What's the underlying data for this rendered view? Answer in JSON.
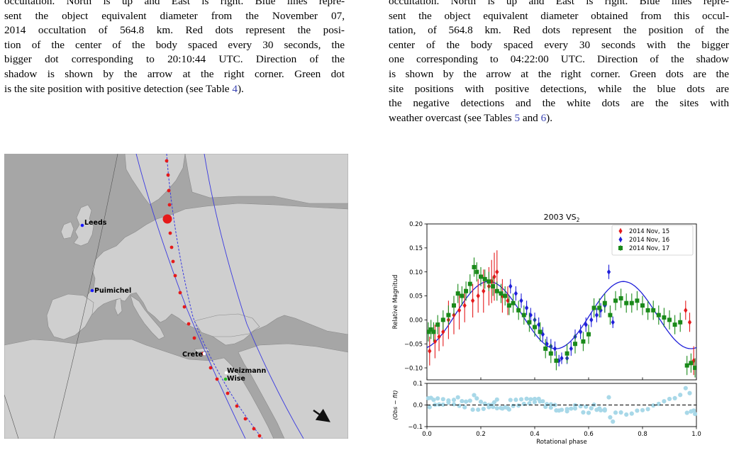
{
  "captions": {
    "left": [
      {
        "t": "occultation. North is up and East is right. Blue lines repre-"
      },
      {
        "t": "sent the object equivalent diameter from the November 07,"
      },
      {
        "t": "2014 occultation of 564.8 km. Red dots represent the posi-"
      },
      {
        "t": "tion of the center of the body spaced every 30 seconds, the"
      },
      {
        "t": "bigger dot corresponding to 20:10:44 UTC. Direction of the"
      },
      {
        "t": "shadow is shown by the arrow at the right corner. Green dot"
      },
      {
        "t": "is the site position with positive detection (see Table ",
        "ref": "4",
        "after": ")."
      }
    ],
    "right": [
      {
        "t": "occultation. North is up and East is right. Blue lines repre-"
      },
      {
        "t": "sent the object equivalent diameter obtained from this occul-"
      },
      {
        "t": "tation, of 564.8 km. Red dots represent the position of the"
      },
      {
        "t": "center of the body spaced every 30 seconds with the bigger"
      },
      {
        "t": "one corresponding to 04:22:00 UTC. Direction of the shadow"
      },
      {
        "t": "is shown by the arrow at the right corner. Green dots are the"
      },
      {
        "t": "site positions with positive detections, while the blue dots are"
      },
      {
        "t": "the negative detections and the white dots are the sites with"
      },
      {
        "t": "weather overcast (see Tables ",
        "ref": "5",
        "mid": " and ",
        "ref2": "6",
        "after": ")."
      }
    ]
  },
  "map": {
    "sites": [
      {
        "name": "Leeds",
        "lon": -1.5,
        "lat": 53.8,
        "color": "#1a1aff"
      },
      {
        "name": "Puimichel",
        "lon": 6.0,
        "lat": 43.98,
        "color": "#1a1aff"
      },
      {
        "name": "Crete",
        "lon": 24.9,
        "lat": 35.3,
        "color": "#ffffff"
      },
      {
        "name": "Weizmann",
        "lon": 34.8,
        "lat": 31.9,
        "color": "#ffffff"
      },
      {
        "name": "Wise",
        "lon": 34.76,
        "lat": 30.6,
        "color": "#22bb22"
      }
    ],
    "colors": {
      "sea": "#a6a6a6",
      "land": "#cfcfcf",
      "chord": "#3a3ae0",
      "center": "#e51a1a"
    }
  },
  "lightcurve": {
    "chart_data": {
      "type": "scatter",
      "title": "2003 VS",
      "title_sub": "2",
      "xlabel": "Rotational phase",
      "ylabel": "Relative Magnitud",
      "residual_ylabel": "(Obs − fit)",
      "xlim": [
        0.0,
        1.0
      ],
      "ylim": [
        -0.125,
        0.2
      ],
      "residual_ylim": [
        -0.1,
        0.1
      ],
      "x_ticks": [
        "0.0",
        "0.2",
        "0.4",
        "0.6",
        "0.8",
        "1.0"
      ],
      "y_ticks": [
        "0.20",
        "0.15",
        "0.10",
        "0.05",
        "0.00",
        "−0.05",
        "−0.10"
      ],
      "residual_ticks": [
        "0.1",
        "0.0",
        "−0.1"
      ],
      "legend_position": "top-right",
      "fit": {
        "mean": 0.01,
        "amp1": 0.07,
        "phase1_deg": -75
      },
      "series": [
        {
          "name": "2014 Nov, 15",
          "color": "#e41a1c",
          "marker": "diamond",
          "x": [
            0.01,
            0.03,
            0.045,
            0.06,
            0.08,
            0.1,
            0.12,
            0.14,
            0.17,
            0.19,
            0.21,
            0.23,
            0.24,
            0.25,
            0.26,
            0.28,
            0.3,
            0.96,
            0.975,
            0.99
          ],
          "y": [
            -0.065,
            -0.045,
            -0.035,
            -0.025,
            0.0,
            0.01,
            0.02,
            0.03,
            0.04,
            0.05,
            0.06,
            0.07,
            0.08,
            0.09,
            0.1,
            0.05,
            0.04,
            0.02,
            -0.005,
            -0.085
          ],
          "err": [
            0.03,
            0.035,
            0.03,
            0.03,
            0.04,
            0.04,
            0.04,
            0.035,
            0.035,
            0.035,
            0.045,
            0.04,
            0.045,
            0.05,
            0.045,
            0.035,
            0.03,
            0.02,
            0.02,
            0.03
          ]
        },
        {
          "name": "2014 Nov, 16",
          "color": "#1f1fd9",
          "marker": "diamond",
          "x": [
            0.31,
            0.33,
            0.35,
            0.37,
            0.385,
            0.4,
            0.415,
            0.43,
            0.445,
            0.46,
            0.475,
            0.49,
            0.5,
            0.52,
            0.535,
            0.55,
            0.57,
            0.59,
            0.61,
            0.63,
            0.645,
            0.66,
            0.675,
            0.69
          ],
          "y": [
            0.07,
            0.055,
            0.04,
            0.025,
            0.01,
            0.0,
            -0.01,
            -0.03,
            -0.05,
            -0.055,
            -0.06,
            -0.085,
            -0.08,
            -0.08,
            -0.06,
            -0.035,
            -0.025,
            -0.01,
            0.0,
            0.01,
            0.02,
            0.03,
            0.1,
            -0.005
          ],
          "err": [
            0.015,
            0.015,
            0.015,
            0.015,
            0.015,
            0.015,
            0.015,
            0.015,
            0.015,
            0.015,
            0.015,
            0.012,
            0.012,
            0.012,
            0.015,
            0.015,
            0.015,
            0.015,
            0.015,
            0.015,
            0.015,
            0.015,
            0.015,
            0.012
          ]
        },
        {
          "name": "2014 Nov, 17",
          "color": "#1a8a1a",
          "marker": "square",
          "x": [
            0.005,
            0.015,
            0.025,
            0.04,
            0.06,
            0.08,
            0.1,
            0.115,
            0.13,
            0.145,
            0.16,
            0.175,
            0.185,
            0.2,
            0.215,
            0.23,
            0.245,
            0.26,
            0.275,
            0.29,
            0.305,
            0.32,
            0.34,
            0.36,
            0.38,
            0.4,
            0.42,
            0.44,
            0.46,
            0.48,
            0.52,
            0.55,
            0.58,
            0.6,
            0.62,
            0.64,
            0.66,
            0.68,
            0.7,
            0.72,
            0.74,
            0.76,
            0.78,
            0.8,
            0.82,
            0.84,
            0.86,
            0.88,
            0.9,
            0.92,
            0.94,
            0.965,
            0.98,
            0.995
          ],
          "y": [
            -0.025,
            -0.02,
            -0.025,
            -0.01,
            0.0,
            0.01,
            0.03,
            0.055,
            0.05,
            0.06,
            0.075,
            0.11,
            0.1,
            0.09,
            0.085,
            0.08,
            0.07,
            0.06,
            0.055,
            0.05,
            0.03,
            0.035,
            0.02,
            0.01,
            -0.005,
            -0.015,
            -0.025,
            -0.06,
            -0.07,
            -0.085,
            -0.07,
            -0.05,
            -0.045,
            -0.03,
            0.025,
            0.025,
            0.035,
            0.01,
            0.04,
            0.045,
            0.035,
            0.035,
            0.04,
            0.03,
            0.02,
            0.02,
            0.01,
            0.005,
            0.0,
            -0.01,
            -0.005,
            -0.095,
            -0.09,
            -0.1
          ],
          "err": [
            0.02,
            0.02,
            0.02,
            0.02,
            0.02,
            0.02,
            0.02,
            0.02,
            0.02,
            0.02,
            0.02,
            0.02,
            0.02,
            0.02,
            0.02,
            0.02,
            0.02,
            0.02,
            0.02,
            0.02,
            0.02,
            0.02,
            0.02,
            0.02,
            0.02,
            0.02,
            0.02,
            0.02,
            0.02,
            0.02,
            0.02,
            0.02,
            0.02,
            0.02,
            0.02,
            0.02,
            0.02,
            0.02,
            0.02,
            0.02,
            0.02,
            0.02,
            0.02,
            0.02,
            0.02,
            0.02,
            0.02,
            0.02,
            0.02,
            0.02,
            0.02,
            0.02,
            0.02,
            0.02
          ]
        }
      ]
    },
    "residual_color": "#a8d8e8"
  }
}
